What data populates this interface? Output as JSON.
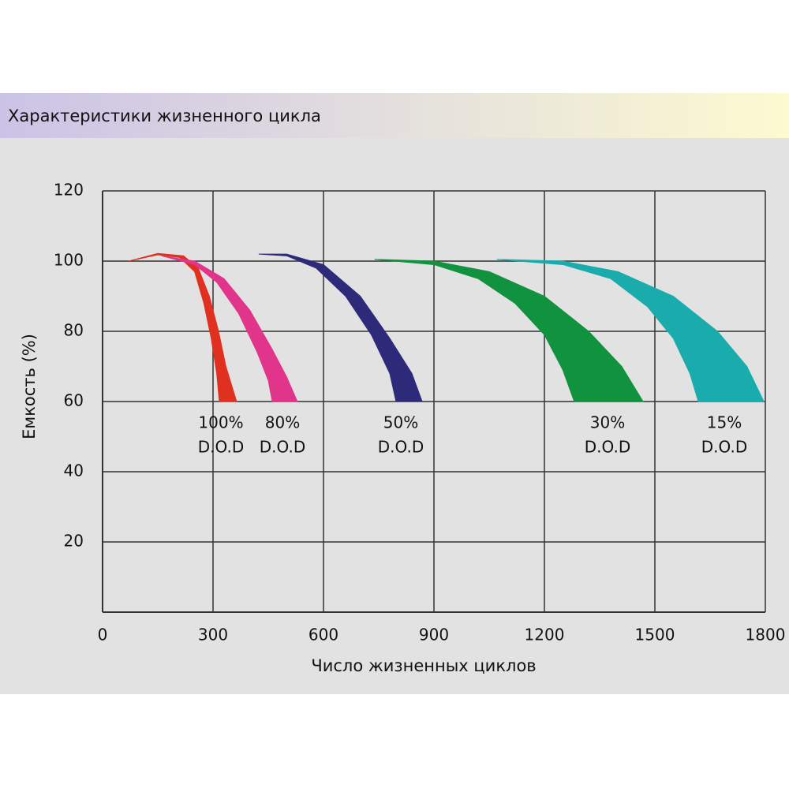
{
  "chart_data": {
    "type": "band",
    "title": "Характеристики жизненного цикла",
    "xlabel": "Число жизненных циклов",
    "ylabel": "Емкость (%)",
    "xlim": [
      0,
      1800
    ],
    "xticks": [
      0,
      300,
      600,
      900,
      1200,
      1500,
      1800
    ],
    "ylim": [
      0,
      120
    ],
    "yticks": [
      20,
      40,
      60,
      80,
      100,
      120
    ],
    "grid": true,
    "series": [
      {
        "label": [
          "100%",
          "D.O.D"
        ],
        "color": "#e03020",
        "outer": {
          "x": [
            71,
            150,
            220,
            260,
            290,
            315,
            335,
            364
          ],
          "y": [
            100,
            102.2,
            101.5,
            98,
            90,
            80,
            70,
            60
          ]
        },
        "inner": {
          "x": [
            71,
            150,
            210,
            250,
            275,
            295,
            310,
            317
          ],
          "y": [
            100,
            101.8,
            101,
            97,
            88,
            78,
            68,
            60
          ]
        }
      },
      {
        "label": [
          "80%",
          "D.O.D"
        ],
        "color": "#e0358a",
        "outer": {
          "x": [
            160,
            250,
            330,
            400,
            460,
            500,
            529
          ],
          "y": [
            101.5,
            100,
            95,
            86,
            75,
            67,
            60
          ]
        },
        "inner": {
          "x": [
            160,
            250,
            310,
            370,
            420,
            450,
            461
          ],
          "y": [
            101.5,
            99,
            94,
            85,
            74,
            66,
            60
          ]
        }
      },
      {
        "label": [
          "50%",
          "D.O.D"
        ],
        "color": "#2e2a7a",
        "outer": {
          "x": [
            424,
            500,
            600,
            700,
            780,
            840,
            868
          ],
          "y": [
            102,
            102,
            99,
            90,
            78,
            68,
            60
          ]
        },
        "inner": {
          "x": [
            424,
            500,
            580,
            660,
            730,
            780,
            797
          ],
          "y": [
            102,
            101.5,
            98,
            90,
            79,
            68,
            60
          ]
        }
      },
      {
        "label": [
          "30%",
          "D.O.D"
        ],
        "color": "#10923e",
        "outer": {
          "x": [
            739,
            900,
            1050,
            1200,
            1320,
            1410,
            1468
          ],
          "y": [
            100.5,
            100,
            97,
            90,
            80,
            70,
            60
          ]
        },
        "inner": {
          "x": [
            739,
            900,
            1020,
            1120,
            1200,
            1250,
            1281
          ],
          "y": [
            100.5,
            99,
            95,
            88,
            79,
            69,
            60
          ]
        }
      },
      {
        "label": [
          "15%",
          "D.O.D"
        ],
        "color": "#1aacac",
        "outer": {
          "x": [
            1071,
            1250,
            1400,
            1550,
            1670,
            1750,
            1796
          ],
          "y": [
            100.5,
            100,
            97,
            90,
            80,
            70,
            60
          ]
        },
        "inner": {
          "x": [
            1071,
            1250,
            1380,
            1480,
            1550,
            1595,
            1618
          ],
          "y": [
            100.5,
            99,
            95,
            87,
            78,
            68,
            60
          ]
        }
      }
    ]
  }
}
